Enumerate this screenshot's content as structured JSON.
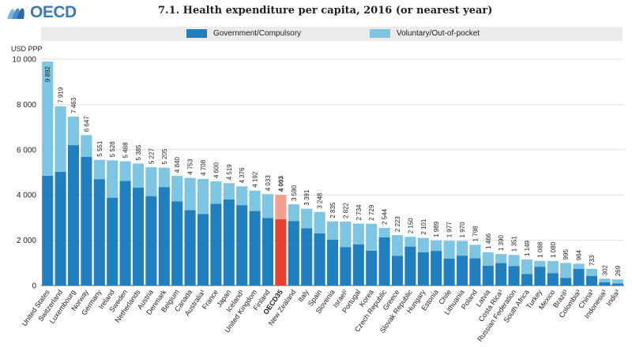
{
  "header": {
    "logo_text": "OECD",
    "title": "7.1. Health expenditure per capita, 2016 (or nearest year)"
  },
  "colors": {
    "government": "#1f7fbf",
    "voluntary": "#7ec4e3",
    "highlight_government": "#e8412f",
    "highlight_voluntary": "#f4a090",
    "legend_background": "#ebebeb"
  },
  "chart_data": {
    "type": "bar",
    "stacked": true,
    "title": "7.1. Health expenditure per capita, 2016 (or nearest year)",
    "ylabel": "USD PPP",
    "ylim": [
      0,
      10000
    ],
    "yticks": [
      0,
      2000,
      4000,
      6000,
      8000,
      10000
    ],
    "ytick_labels": [
      "0",
      "2 000",
      "4 000",
      "6 000",
      "8 000",
      "10 000"
    ],
    "grid": true,
    "legend_position": "top",
    "highlight": "OECD35",
    "categories": [
      "United States",
      "Switzerland",
      "Luxembourg",
      "Norway",
      "Germany",
      "Ireland",
      "Sweden",
      "Netherlands",
      "Austria",
      "Denmark",
      "Belgium",
      "Canada",
      "Australia¹",
      "France",
      "Japan",
      "Iceland¹",
      "United Kingdom",
      "Finland",
      "OECD35",
      "New Zealand",
      "Italy",
      "Spain",
      "Slovenia",
      "Israel²",
      "Portugal",
      "Korea",
      "Czech Republic",
      "Greece",
      "Slovak Republic",
      "Hungary",
      "Estonia",
      "Chile",
      "Lithuania",
      "Poland",
      "Latvia",
      "Costa Rica³",
      "Russian Federation",
      "South Africa",
      "Turkey",
      "Mexico",
      "Brazil³",
      "Colombia³",
      "China³",
      "Indonesia³",
      "India³"
    ],
    "totals": [
      9892,
      7919,
      7463,
      6647,
      5551,
      5528,
      5488,
      5385,
      5227,
      5205,
      4840,
      4753,
      4708,
      4600,
      4519,
      4376,
      4192,
      4033,
      4003,
      3590,
      3391,
      3248,
      2835,
      2822,
      2734,
      2729,
      2544,
      2223,
      2150,
      2101,
      1989,
      1977,
      1970,
      1798,
      1466,
      1390,
      1351,
      1149,
      1088,
      1080,
      995,
      964,
      733,
      302,
      269
    ],
    "total_labels": [
      "9 892",
      "7 919",
      "7 463",
      "6 647",
      "5 551",
      "5 528",
      "5 488",
      "5 385",
      "5 227",
      "5 205",
      "4 840",
      "4 753",
      "4 708",
      "4 600",
      "4 519",
      "4 376",
      "4 192",
      "4 033",
      "4 003",
      "3 590",
      "3 391",
      "3 248",
      "2 835",
      "2 822",
      "2 734",
      "2 729",
      "2 544",
      "2 223",
      "2 150",
      "2 101",
      "1 989",
      "1 977",
      "1 970",
      "1 798",
      "1 466",
      "1 390",
      "1 351",
      "1 149",
      "1 088",
      "1 080",
      "995",
      "964",
      "733",
      "302",
      "269"
    ],
    "series": [
      {
        "name": "Government/Compulsory",
        "values": [
          4850,
          5020,
          6200,
          5680,
          4700,
          3880,
          4620,
          4330,
          3950,
          4350,
          3720,
          3330,
          3160,
          3610,
          3800,
          3550,
          3290,
          2980,
          2930,
          2850,
          2530,
          2300,
          2020,
          1700,
          1820,
          1540,
          2130,
          1310,
          1720,
          1470,
          1530,
          1190,
          1320,
          1200,
          870,
          990,
          860,
          510,
          830,
          550,
          340,
          740,
          420,
          150,
          90
        ]
      },
      {
        "name": "Voluntary/Out-of-pocket",
        "values": [
          5042,
          2899,
          1263,
          967,
          851,
          1648,
          868,
          1055,
          1277,
          855,
          1120,
          1423,
          1548,
          990,
          719,
          826,
          902,
          1053,
          1073,
          740,
          861,
          948,
          815,
          1122,
          914,
          1189,
          414,
          913,
          430,
          631,
          459,
          787,
          650,
          598,
          596,
          400,
          491,
          639,
          258,
          530,
          655,
          224,
          313,
          152,
          179
        ]
      }
    ]
  }
}
